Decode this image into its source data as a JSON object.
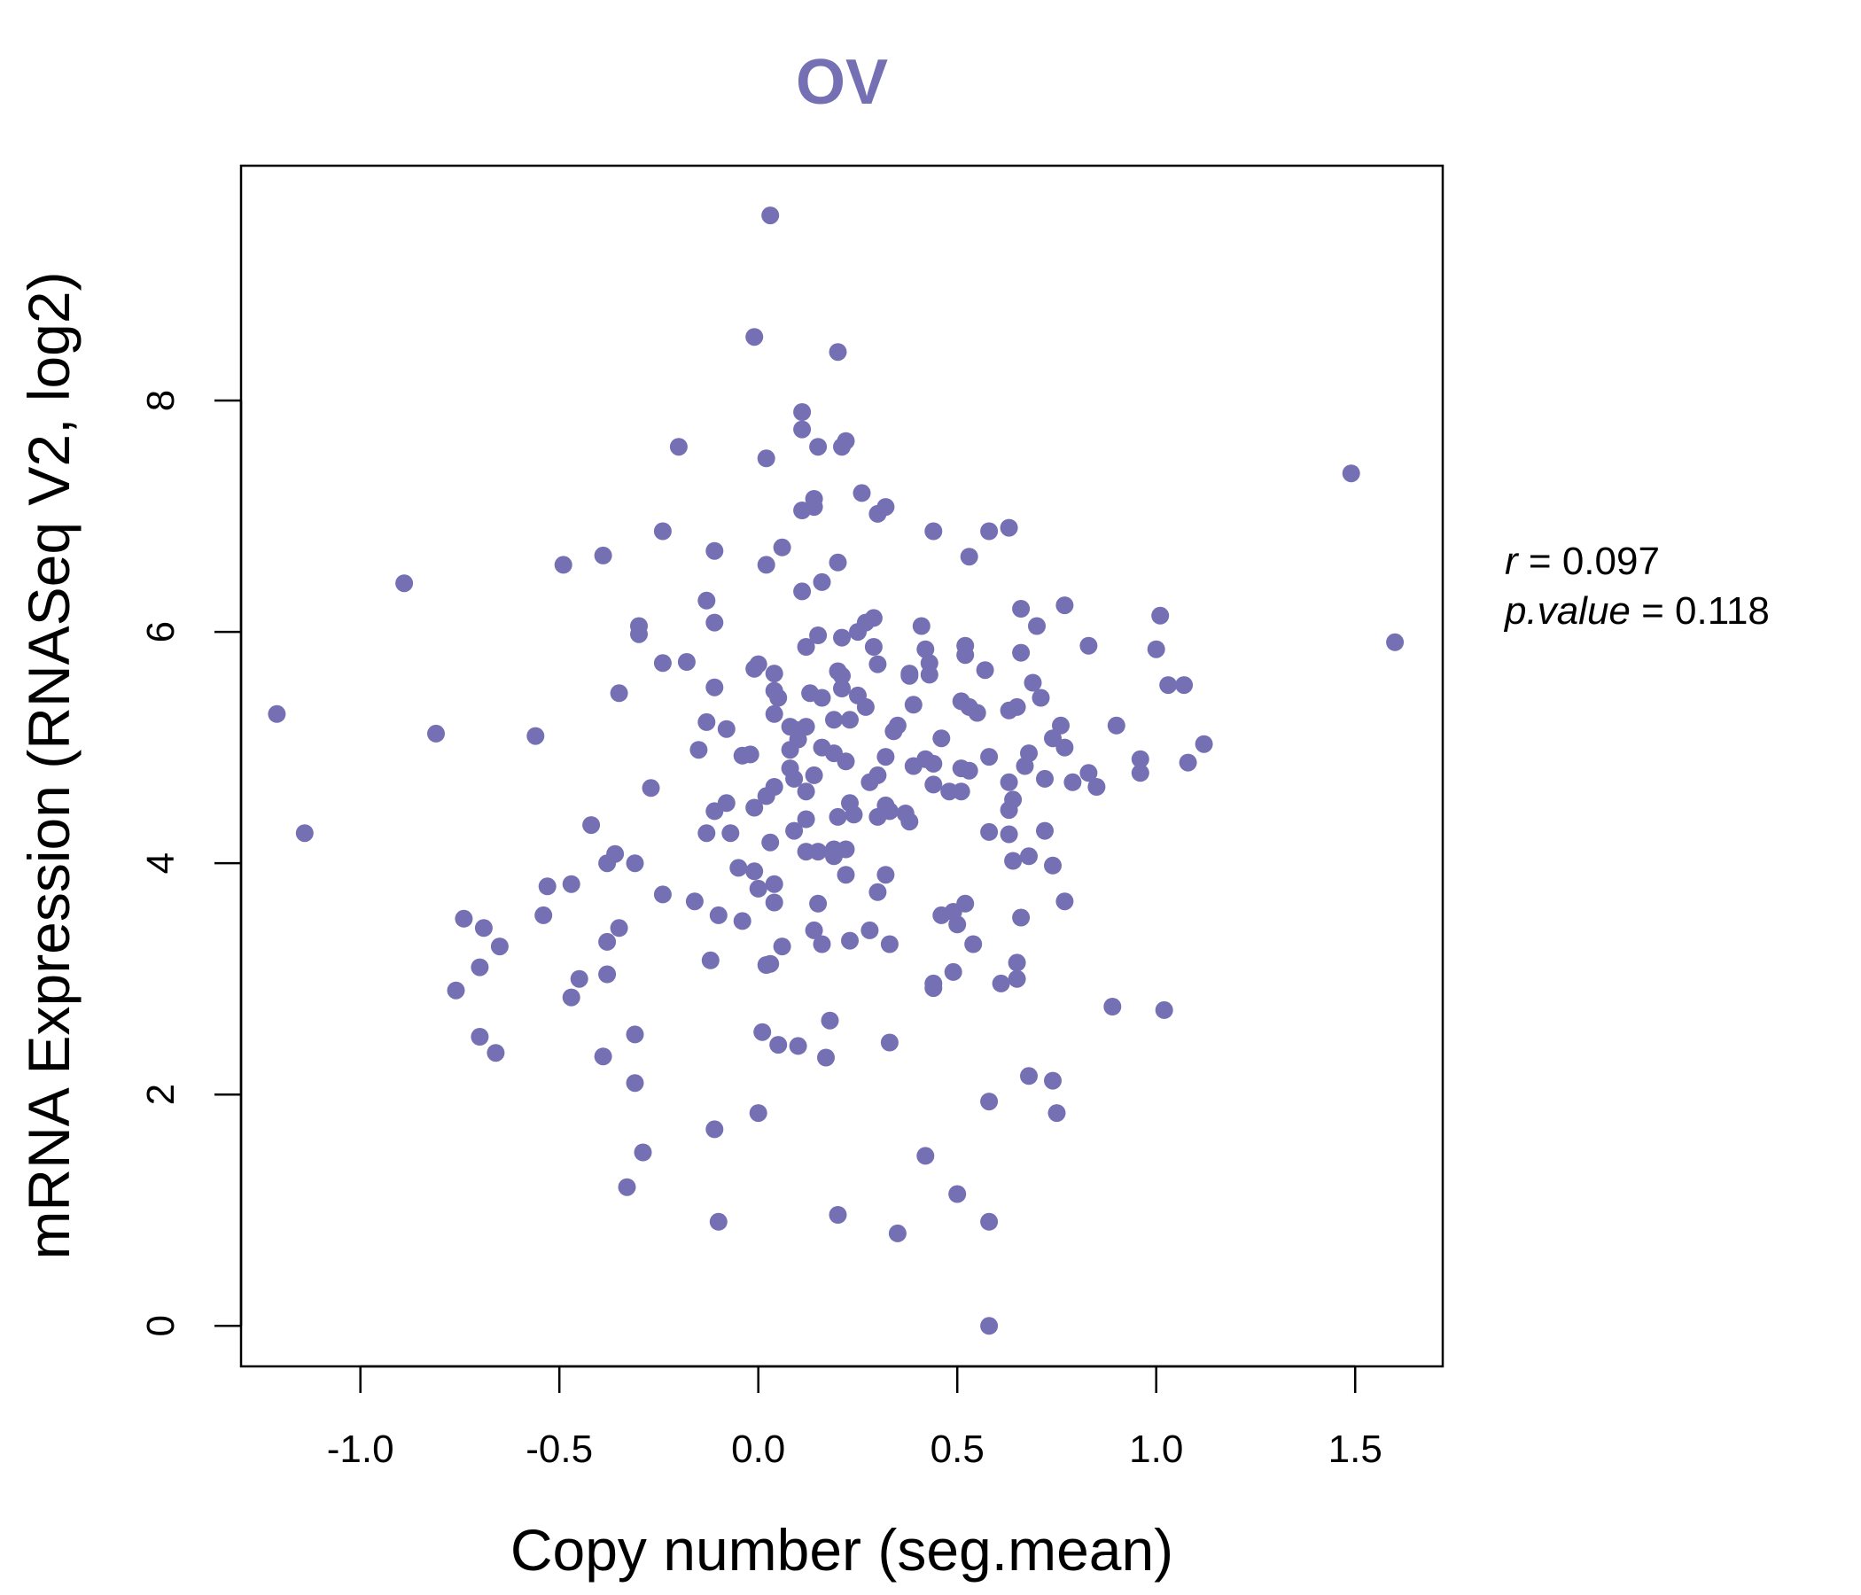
{
  "chart_data": {
    "type": "scatter",
    "title": "OV",
    "xlabel": "Copy number (seg.mean)",
    "ylabel": "mRNA Expression (RNASeq V2, log2)",
    "xlim": [
      -1.3,
      1.72
    ],
    "ylim": [
      -0.35,
      10.03
    ],
    "xticks": [
      -1.0,
      -0.5,
      0.0,
      0.5,
      1.0,
      1.5
    ],
    "xtick_labels": [
      "-1.0",
      "-0.5",
      "0.0",
      "0.5",
      "1.0",
      "1.5"
    ],
    "yticks": [
      0,
      2,
      4,
      6,
      8
    ],
    "ytick_labels": [
      "0",
      "2",
      "4",
      "6",
      "8"
    ],
    "grid": false,
    "legend": "none",
    "point_color": "#7570b3",
    "title_color": "#7570b3",
    "stats": {
      "r_symbol": "r",
      "r_value": "0.097",
      "p_symbol": "p.value",
      "p_value": "0.118"
    },
    "points": [
      [
        0.03,
        9.6
      ],
      [
        -0.01,
        8.55
      ],
      [
        0.2,
        8.42
      ],
      [
        0.11,
        7.9
      ],
      [
        0.11,
        7.75
      ],
      [
        0.22,
        7.65
      ],
      [
        0.21,
        7.6
      ],
      [
        0.15,
        7.6
      ],
      [
        -0.2,
        7.6
      ],
      [
        0.02,
        7.5
      ],
      [
        1.49,
        7.37
      ],
      [
        0.26,
        7.2
      ],
      [
        0.14,
        7.15
      ],
      [
        0.32,
        7.08
      ],
      [
        0.14,
        7.08
      ],
      [
        0.11,
        7.05
      ],
      [
        0.3,
        7.02
      ],
      [
        0.63,
        6.9
      ],
      [
        0.58,
        6.87
      ],
      [
        0.44,
        6.87
      ],
      [
        -0.24,
        6.87
      ],
      [
        0.06,
        6.73
      ],
      [
        -0.11,
        6.7
      ],
      [
        -0.39,
        6.66
      ],
      [
        0.53,
        6.65
      ],
      [
        0.2,
        6.6
      ],
      [
        0.02,
        6.58
      ],
      [
        -0.49,
        6.58
      ],
      [
        0.16,
        6.43
      ],
      [
        -0.89,
        6.42
      ],
      [
        0.11,
        6.35
      ],
      [
        -0.13,
        6.27
      ],
      [
        0.77,
        6.23
      ],
      [
        0.66,
        6.2
      ],
      [
        1.01,
        6.14
      ],
      [
        0.29,
        6.12
      ],
      [
        0.27,
        6.08
      ],
      [
        -0.11,
        6.08
      ],
      [
        0.7,
        6.05
      ],
      [
        0.41,
        6.05
      ],
      [
        -0.3,
        6.05
      ],
      [
        -0.3,
        5.98
      ],
      [
        0.25,
        6.0
      ],
      [
        0.15,
        5.97
      ],
      [
        0.21,
        5.95
      ],
      [
        0.83,
        5.88
      ],
      [
        0.52,
        5.88
      ],
      [
        1.6,
        5.91
      ],
      [
        0.29,
        5.87
      ],
      [
        0.12,
        5.87
      ],
      [
        0.42,
        5.85
      ],
      [
        1.0,
        5.85
      ],
      [
        0.66,
        5.82
      ],
      [
        0.52,
        5.8
      ],
      [
        -0.18,
        5.74
      ],
      [
        -0.24,
        5.73
      ],
      [
        0.43,
        5.73
      ],
      [
        0.3,
        5.72
      ],
      [
        0.0,
        5.72
      ],
      [
        -0.01,
        5.68
      ],
      [
        0.57,
        5.67
      ],
      [
        0.2,
        5.66
      ],
      [
        0.38,
        5.64
      ],
      [
        0.43,
        5.63
      ],
      [
        0.04,
        5.64
      ],
      [
        0.21,
        5.62
      ],
      [
        0.38,
        5.62
      ],
      [
        0.69,
        5.56
      ],
      [
        1.03,
        5.54
      ],
      [
        1.07,
        5.54
      ],
      [
        -0.11,
        5.52
      ],
      [
        0.21,
        5.51
      ],
      [
        0.04,
        5.49
      ],
      [
        0.13,
        5.47
      ],
      [
        -0.35,
        5.47
      ],
      [
        0.25,
        5.45
      ],
      [
        0.16,
        5.43
      ],
      [
        0.05,
        5.43
      ],
      [
        0.71,
        5.43
      ],
      [
        0.51,
        5.4
      ],
      [
        0.39,
        5.37
      ],
      [
        0.53,
        5.35
      ],
      [
        0.27,
        5.35
      ],
      [
        0.65,
        5.35
      ],
      [
        0.63,
        5.32
      ],
      [
        0.55,
        5.3
      ],
      [
        0.04,
        5.29
      ],
      [
        0.19,
        5.24
      ],
      [
        0.23,
        5.24
      ],
      [
        -0.13,
        5.22
      ],
      [
        1.12,
        5.03
      ],
      [
        0.9,
        5.19
      ],
      [
        0.76,
        5.19
      ],
      [
        0.35,
        5.19
      ],
      [
        0.08,
        5.18
      ],
      [
        0.12,
        5.18
      ],
      [
        -1.21,
        5.29
      ],
      [
        0.1,
        5.15
      ],
      [
        -0.08,
        5.16
      ],
      [
        0.34,
        5.14
      ],
      [
        -0.81,
        5.12
      ],
      [
        -0.56,
        5.1
      ],
      [
        0.74,
        5.08
      ],
      [
        0.46,
        5.08
      ],
      [
        0.1,
        5.07
      ],
      [
        0.77,
        5.0
      ],
      [
        0.16,
        5.0
      ],
      [
        0.08,
        4.98
      ],
      [
        -0.15,
        4.98
      ],
      [
        0.19,
        4.95
      ],
      [
        0.68,
        4.95
      ],
      [
        -0.04,
        4.93
      ],
      [
        -0.02,
        4.94
      ],
      [
        0.32,
        4.92
      ],
      [
        0.58,
        4.92
      ],
      [
        0.96,
        4.9
      ],
      [
        0.42,
        4.9
      ],
      [
        0.22,
        4.88
      ],
      [
        1.08,
        4.87
      ],
      [
        0.44,
        4.86
      ],
      [
        0.39,
        4.84
      ],
      [
        0.67,
        4.84
      ],
      [
        0.51,
        4.82
      ],
      [
        0.08,
        4.82
      ],
      [
        0.53,
        4.8
      ],
      [
        0.83,
        4.78
      ],
      [
        0.14,
        4.76
      ],
      [
        0.96,
        4.78
      ],
      [
        0.3,
        4.76
      ],
      [
        0.09,
        4.73
      ],
      [
        0.72,
        4.73
      ],
      [
        0.79,
        4.7
      ],
      [
        0.63,
        4.7
      ],
      [
        0.28,
        4.7
      ],
      [
        0.44,
        4.68
      ],
      [
        0.85,
        4.66
      ],
      [
        0.04,
        4.66
      ],
      [
        -0.27,
        4.65
      ],
      [
        0.48,
        4.62
      ],
      [
        0.12,
        4.62
      ],
      [
        0.51,
        4.62
      ],
      [
        0.02,
        4.58
      ],
      [
        0.64,
        4.55
      ],
      [
        0.23,
        4.52
      ],
      [
        -0.08,
        4.52
      ],
      [
        0.32,
        4.5
      ],
      [
        -0.01,
        4.48
      ],
      [
        0.33,
        4.45
      ],
      [
        0.63,
        4.46
      ],
      [
        0.37,
        4.43
      ],
      [
        -0.11,
        4.45
      ],
      [
        0.24,
        4.42
      ],
      [
        0.3,
        4.4
      ],
      [
        0.2,
        4.4
      ],
      [
        0.12,
        4.38
      ],
      [
        0.38,
        4.36
      ],
      [
        -0.42,
        4.33
      ],
      [
        0.09,
        4.28
      ],
      [
        0.72,
        4.28
      ],
      [
        0.58,
        4.27
      ],
      [
        0.63,
        4.25
      ],
      [
        -0.13,
        4.26
      ],
      [
        -1.14,
        4.26
      ],
      [
        -0.07,
        4.26
      ],
      [
        0.03,
        4.18
      ],
      [
        0.22,
        4.12
      ],
      [
        0.19,
        4.12
      ],
      [
        0.15,
        4.1
      ],
      [
        0.12,
        4.1
      ],
      [
        0.19,
        4.06
      ],
      [
        0.68,
        4.06
      ],
      [
        0.64,
        4.02
      ],
      [
        -0.36,
        4.08
      ],
      [
        -0.38,
        4.0
      ],
      [
        -0.31,
        4.0
      ],
      [
        0.74,
        3.98
      ],
      [
        -0.05,
        3.96
      ],
      [
        -0.01,
        3.93
      ],
      [
        0.32,
        3.9
      ],
      [
        0.22,
        3.9
      ],
      [
        -0.47,
        3.82
      ],
      [
        0.04,
        3.82
      ],
      [
        -0.53,
        3.8
      ],
      [
        0.0,
        3.78
      ],
      [
        0.3,
        3.75
      ],
      [
        -0.24,
        3.73
      ],
      [
        0.04,
        3.66
      ],
      [
        0.15,
        3.65
      ],
      [
        0.52,
        3.65
      ],
      [
        -0.16,
        3.67
      ],
      [
        0.77,
        3.67
      ],
      [
        0.49,
        3.58
      ],
      [
        0.46,
        3.55
      ],
      [
        -0.1,
        3.55
      ],
      [
        -0.54,
        3.55
      ],
      [
        0.66,
        3.53
      ],
      [
        -0.74,
        3.52
      ],
      [
        -0.04,
        3.5
      ],
      [
        0.5,
        3.47
      ],
      [
        -0.69,
        3.44
      ],
      [
        -0.35,
        3.44
      ],
      [
        0.14,
        3.42
      ],
      [
        0.28,
        3.42
      ],
      [
        0.23,
        3.33
      ],
      [
        0.16,
        3.3
      ],
      [
        0.33,
        3.3
      ],
      [
        0.06,
        3.28
      ],
      [
        -0.38,
        3.32
      ],
      [
        0.54,
        3.3
      ],
      [
        -0.65,
        3.28
      ],
      [
        -0.12,
        3.16
      ],
      [
        0.03,
        3.13
      ],
      [
        0.65,
        3.14
      ],
      [
        0.02,
        3.12
      ],
      [
        -0.7,
        3.1
      ],
      [
        -0.38,
        3.04
      ],
      [
        0.49,
        3.06
      ],
      [
        -0.45,
        3.0
      ],
      [
        0.65,
        3.0
      ],
      [
        0.61,
        2.96
      ],
      [
        0.44,
        2.96
      ],
      [
        0.44,
        2.92
      ],
      [
        -0.76,
        2.9
      ],
      [
        -0.47,
        2.84
      ],
      [
        0.89,
        2.76
      ],
      [
        1.02,
        2.73
      ],
      [
        0.18,
        2.64
      ],
      [
        -0.31,
        2.52
      ],
      [
        0.01,
        2.54
      ],
      [
        -0.7,
        2.5
      ],
      [
        0.33,
        2.45
      ],
      [
        0.05,
        2.43
      ],
      [
        0.1,
        2.42
      ],
      [
        -0.66,
        2.36
      ],
      [
        -0.39,
        2.33
      ],
      [
        0.17,
        2.32
      ],
      [
        0.68,
        2.16
      ],
      [
        0.74,
        2.12
      ],
      [
        -0.31,
        2.1
      ],
      [
        0.58,
        1.94
      ],
      [
        0.0,
        1.84
      ],
      [
        0.75,
        1.84
      ],
      [
        -0.11,
        1.7
      ],
      [
        -0.29,
        1.5
      ],
      [
        0.42,
        1.47
      ],
      [
        -0.33,
        1.2
      ],
      [
        0.5,
        1.14
      ],
      [
        0.2,
        0.96
      ],
      [
        -0.1,
        0.9
      ],
      [
        0.58,
        0.9
      ],
      [
        0.35,
        0.8
      ],
      [
        0.58,
        0.0
      ]
    ]
  }
}
